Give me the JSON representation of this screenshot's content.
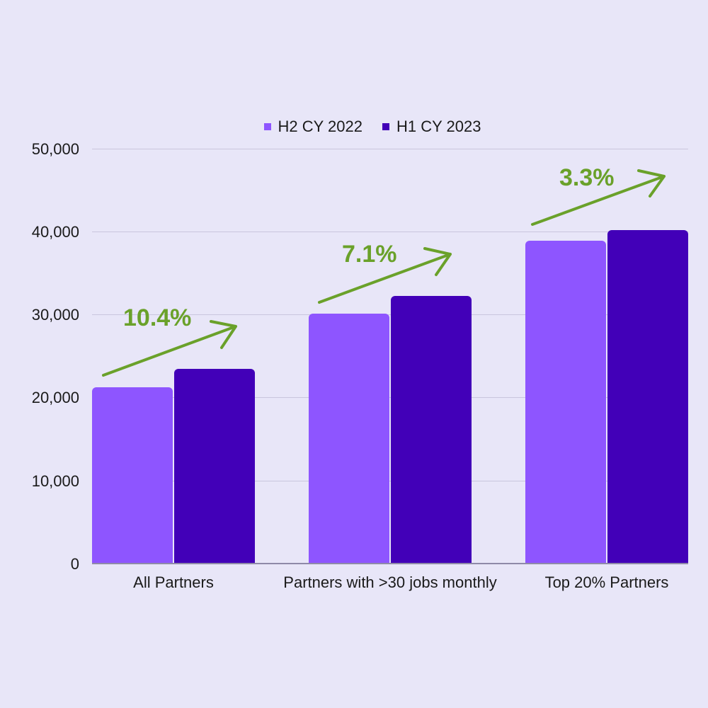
{
  "chart_data": {
    "type": "bar",
    "title": "",
    "xlabel": "",
    "ylabel": "",
    "ylim": [
      0,
      50000
    ],
    "yticks": [
      "0",
      "10,000",
      "20,000",
      "30,000",
      "40,000",
      "50,000"
    ],
    "grid": true,
    "legend_position": "top",
    "categories": [
      "All Partners",
      "Partners with >30 jobs monthly",
      "Top 20% Partners"
    ],
    "series": [
      {
        "name": "H2 CY 2022",
        "color": "#8e55ff",
        "values": [
          21300,
          30200,
          39000
        ]
      },
      {
        "name": "H1 CY 2023",
        "color": "#4200b8",
        "values": [
          23500,
          32300,
          40250
        ]
      }
    ],
    "annotations": [
      {
        "text": "10.4%",
        "category": "All Partners"
      },
      {
        "text": "7.1%",
        "category": "Partners with >30 jobs monthly"
      },
      {
        "text": "3.3%",
        "category": "Top 20% Partners"
      }
    ],
    "annotation_color": "#6aa12a"
  }
}
